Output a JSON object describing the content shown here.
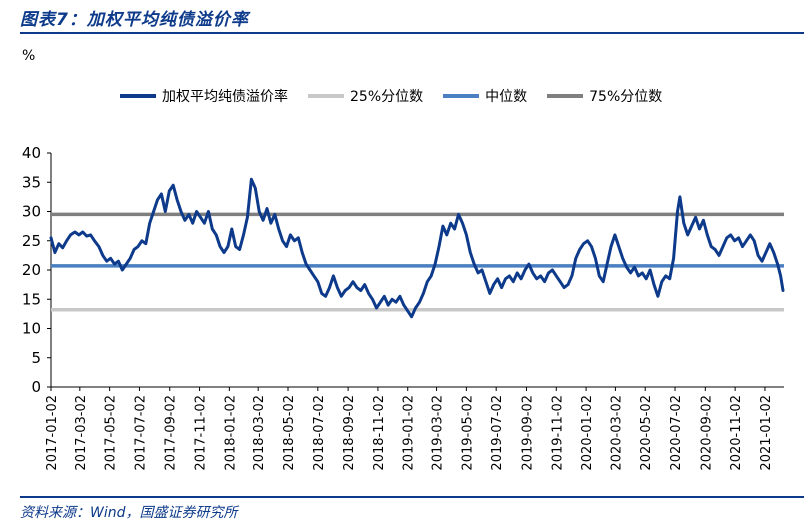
{
  "figure": {
    "title": "图表7：加权平均纯债溢价率",
    "unit": "%",
    "source": "资料来源：Wind，国盛证券研究所"
  },
  "colors": {
    "main_series": "#0d3a8a",
    "p25": "#c8c8c8",
    "median": "#4a7fc1",
    "p75": "#7f7f7f",
    "frame": "#0d3a8a"
  },
  "chart_data": {
    "type": "line",
    "title": "",
    "xlabel": "",
    "ylabel": "%",
    "ylim": [
      0,
      40
    ],
    "yticks": [
      0,
      5,
      10,
      15,
      20,
      25,
      30,
      35,
      40
    ],
    "grid": false,
    "legend_position": "top",
    "x_tick_labels": [
      "2017-01-02",
      "2017-03-02",
      "2017-05-02",
      "2017-07-02",
      "2017-09-02",
      "2017-11-02",
      "2018-01-02",
      "2018-03-02",
      "2018-05-02",
      "2018-07-02",
      "2018-09-02",
      "2018-11-02",
      "2019-01-02",
      "2019-03-02",
      "2019-05-02",
      "2019-07-02",
      "2019-09-02",
      "2019-11-02",
      "2020-01-02",
      "2020-03-02",
      "2020-05-02",
      "2020-07-02",
      "2020-09-02",
      "2020-11-02",
      "2021-01-02"
    ],
    "x_range": [
      "2017-01-02",
      "2021-02-10"
    ],
    "series": [
      {
        "name": "加权平均纯债溢价率",
        "points": [
          [
            "2017-01-02",
            25.5
          ],
          [
            "2017-01-10",
            23
          ],
          [
            "2017-01-18",
            24.5
          ],
          [
            "2017-01-26",
            23.8
          ],
          [
            "2017-02-03",
            25
          ],
          [
            "2017-02-11",
            26
          ],
          [
            "2017-02-20",
            26.5
          ],
          [
            "2017-02-28",
            26
          ],
          [
            "2017-03-08",
            26.5
          ],
          [
            "2017-03-16",
            25.8
          ],
          [
            "2017-03-24",
            26
          ],
          [
            "2017-04-01",
            25
          ],
          [
            "2017-04-10",
            24
          ],
          [
            "2017-04-18",
            22.5
          ],
          [
            "2017-04-26",
            21.5
          ],
          [
            "2017-05-04",
            22
          ],
          [
            "2017-05-12",
            21
          ],
          [
            "2017-05-20",
            21.5
          ],
          [
            "2017-05-28",
            20
          ],
          [
            "2017-06-05",
            21
          ],
          [
            "2017-06-13",
            22
          ],
          [
            "2017-06-21",
            23.5
          ],
          [
            "2017-06-29",
            24
          ],
          [
            "2017-07-07",
            25
          ],
          [
            "2017-07-15",
            24.5
          ],
          [
            "2017-07-23",
            28
          ],
          [
            "2017-07-31",
            30
          ],
          [
            "2017-08-08",
            32
          ],
          [
            "2017-08-16",
            33
          ],
          [
            "2017-08-24",
            30
          ],
          [
            "2017-09-01",
            33.5
          ],
          [
            "2017-09-09",
            34.5
          ],
          [
            "2017-09-17",
            32
          ],
          [
            "2017-09-25",
            30
          ],
          [
            "2017-10-03",
            28.5
          ],
          [
            "2017-10-11",
            29.5
          ],
          [
            "2017-10-19",
            28
          ],
          [
            "2017-10-27",
            30
          ],
          [
            "2017-11-04",
            29
          ],
          [
            "2017-11-12",
            28
          ],
          [
            "2017-11-20",
            30
          ],
          [
            "2017-11-28",
            27
          ],
          [
            "2017-12-06",
            26
          ],
          [
            "2017-12-14",
            24
          ],
          [
            "2017-12-22",
            23
          ],
          [
            "2017-12-30",
            24
          ],
          [
            "2018-01-07",
            27
          ],
          [
            "2018-01-15",
            24
          ],
          [
            "2018-01-23",
            23.5
          ],
          [
            "2018-01-31",
            26
          ],
          [
            "2018-02-08",
            29
          ],
          [
            "2018-02-16",
            35.5
          ],
          [
            "2018-02-24",
            34
          ],
          [
            "2018-03-04",
            30
          ],
          [
            "2018-03-12",
            28.5
          ],
          [
            "2018-03-20",
            30.5
          ],
          [
            "2018-03-28",
            28
          ],
          [
            "2018-04-05",
            29.5
          ],
          [
            "2018-04-13",
            27
          ],
          [
            "2018-04-21",
            25
          ],
          [
            "2018-04-29",
            24
          ],
          [
            "2018-05-07",
            26
          ],
          [
            "2018-05-15",
            25
          ],
          [
            "2018-05-23",
            25.5
          ],
          [
            "2018-05-31",
            23
          ],
          [
            "2018-06-08",
            21
          ],
          [
            "2018-06-16",
            20
          ],
          [
            "2018-06-24",
            19
          ],
          [
            "2018-07-02",
            18
          ],
          [
            "2018-07-10",
            16
          ],
          [
            "2018-07-18",
            15.5
          ],
          [
            "2018-07-26",
            17
          ],
          [
            "2018-08-03",
            19
          ],
          [
            "2018-08-11",
            17
          ],
          [
            "2018-08-19",
            15.5
          ],
          [
            "2018-08-27",
            16.5
          ],
          [
            "2018-09-04",
            17
          ],
          [
            "2018-09-12",
            18
          ],
          [
            "2018-09-20",
            17
          ],
          [
            "2018-09-28",
            16.5
          ],
          [
            "2018-10-06",
            17.5
          ],
          [
            "2018-10-14",
            16
          ],
          [
            "2018-10-22",
            15
          ],
          [
            "2018-10-30",
            13.5
          ],
          [
            "2018-11-07",
            14.5
          ],
          [
            "2018-11-15",
            15.5
          ],
          [
            "2018-11-23",
            14
          ],
          [
            "2018-12-01",
            15
          ],
          [
            "2018-12-09",
            14.5
          ],
          [
            "2018-12-17",
            15.5
          ],
          [
            "2018-12-25",
            14
          ],
          [
            "2019-01-02",
            13
          ],
          [
            "2019-01-10",
            12
          ],
          [
            "2019-01-18",
            13.5
          ],
          [
            "2019-01-26",
            14.5
          ],
          [
            "2019-02-03",
            16
          ],
          [
            "2019-02-11",
            18
          ],
          [
            "2019-02-19",
            19
          ],
          [
            "2019-02-27",
            21
          ],
          [
            "2019-03-07",
            24
          ],
          [
            "2019-03-15",
            27.5
          ],
          [
            "2019-03-23",
            26
          ],
          [
            "2019-03-31",
            28
          ],
          [
            "2019-04-08",
            27
          ],
          [
            "2019-04-16",
            29.5
          ],
          [
            "2019-04-24",
            28
          ],
          [
            "2019-05-02",
            26
          ],
          [
            "2019-05-10",
            23
          ],
          [
            "2019-05-18",
            21
          ],
          [
            "2019-05-26",
            19.5
          ],
          [
            "2019-06-03",
            20
          ],
          [
            "2019-06-11",
            18
          ],
          [
            "2019-06-19",
            16
          ],
          [
            "2019-06-27",
            17.5
          ],
          [
            "2019-07-05",
            18.5
          ],
          [
            "2019-07-13",
            17
          ],
          [
            "2019-07-21",
            18.5
          ],
          [
            "2019-07-29",
            19
          ],
          [
            "2019-08-06",
            18
          ],
          [
            "2019-08-14",
            19.5
          ],
          [
            "2019-08-22",
            18.5
          ],
          [
            "2019-08-30",
            20
          ],
          [
            "2019-09-07",
            21
          ],
          [
            "2019-09-15",
            19.5
          ],
          [
            "2019-09-23",
            18.5
          ],
          [
            "2019-10-01",
            19
          ],
          [
            "2019-10-09",
            18
          ],
          [
            "2019-10-17",
            19.5
          ],
          [
            "2019-10-25",
            20
          ],
          [
            "2019-11-02",
            19
          ],
          [
            "2019-11-10",
            18
          ],
          [
            "2019-11-18",
            17
          ],
          [
            "2019-11-26",
            17.5
          ],
          [
            "2019-12-04",
            19
          ],
          [
            "2019-12-12",
            22
          ],
          [
            "2019-12-20",
            23.5
          ],
          [
            "2019-12-28",
            24.5
          ],
          [
            "2020-01-05",
            25
          ],
          [
            "2020-01-13",
            24
          ],
          [
            "2020-01-21",
            22
          ],
          [
            "2020-01-29",
            19
          ],
          [
            "2020-02-06",
            18
          ],
          [
            "2020-02-14",
            21
          ],
          [
            "2020-02-22",
            24
          ],
          [
            "2020-03-01",
            26
          ],
          [
            "2020-03-09",
            24
          ],
          [
            "2020-03-17",
            22
          ],
          [
            "2020-03-25",
            20.5
          ],
          [
            "2020-04-02",
            19.5
          ],
          [
            "2020-04-10",
            20.5
          ],
          [
            "2020-04-18",
            19
          ],
          [
            "2020-04-26",
            19.5
          ],
          [
            "2020-05-04",
            18.5
          ],
          [
            "2020-05-12",
            20
          ],
          [
            "2020-05-20",
            17.5
          ],
          [
            "2020-05-28",
            15.5
          ],
          [
            "2020-06-05",
            18
          ],
          [
            "2020-06-13",
            19
          ],
          [
            "2020-06-21",
            18.5
          ],
          [
            "2020-06-29",
            22
          ],
          [
            "2020-07-07",
            30
          ],
          [
            "2020-07-12",
            32.5
          ],
          [
            "2020-07-20",
            28
          ],
          [
            "2020-07-28",
            26
          ],
          [
            "2020-08-05",
            27.5
          ],
          [
            "2020-08-13",
            29
          ],
          [
            "2020-08-21",
            27
          ],
          [
            "2020-08-29",
            28.5
          ],
          [
            "2020-09-06",
            26
          ],
          [
            "2020-09-14",
            24
          ],
          [
            "2020-09-22",
            23.5
          ],
          [
            "2020-09-30",
            22.5
          ],
          [
            "2020-10-08",
            24
          ],
          [
            "2020-10-16",
            25.5
          ],
          [
            "2020-10-24",
            26
          ],
          [
            "2020-11-01",
            25
          ],
          [
            "2020-11-09",
            25.5
          ],
          [
            "2020-11-17",
            24
          ],
          [
            "2020-11-25",
            25
          ],
          [
            "2020-12-03",
            26
          ],
          [
            "2020-12-11",
            25
          ],
          [
            "2020-12-19",
            22.5
          ],
          [
            "2020-12-27",
            21.5
          ],
          [
            "2021-01-04",
            23
          ],
          [
            "2021-01-12",
            24.5
          ],
          [
            "2021-01-20",
            23
          ],
          [
            "2021-01-28",
            21
          ],
          [
            "2021-02-03",
            19
          ],
          [
            "2021-02-08",
            16.5
          ]
        ]
      },
      {
        "name": "25%分位数",
        "value": 13.2
      },
      {
        "name": "中位数",
        "value": 20.7
      },
      {
        "name": "75%分位数",
        "value": 29.5
      }
    ]
  }
}
